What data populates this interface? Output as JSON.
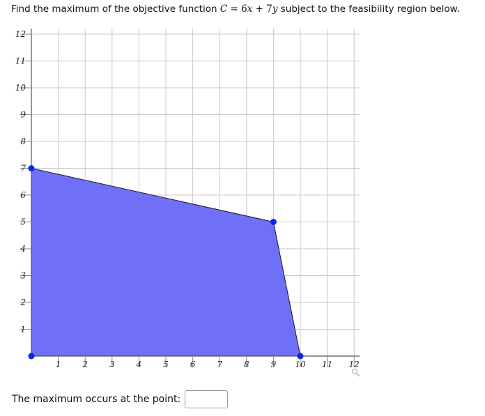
{
  "question": {
    "prefix": "Find the maximum of the objective function ",
    "var_c": "C",
    "eq": " = ",
    "coef_x": "6",
    "var_x": "x",
    "plus": " + ",
    "coef_y": "7",
    "var_y": "y",
    "suffix": " subject to the feasibility region below."
  },
  "chart_data": {
    "type": "area",
    "title": "",
    "xlabel": "",
    "ylabel": "",
    "xlim": [
      0,
      12
    ],
    "ylim": [
      0,
      12
    ],
    "x_ticks": [
      "1",
      "2",
      "3",
      "4",
      "5",
      "6",
      "7",
      "8",
      "9",
      "10",
      "11",
      "12"
    ],
    "y_ticks": [
      "1",
      "2",
      "3",
      "4",
      "5",
      "6",
      "7",
      "8",
      "9",
      "10",
      "11",
      "12"
    ],
    "grid": true,
    "region_color": "#6f6ff7",
    "vertex_color": "#0a24f0",
    "polygon": [
      [
        0,
        0
      ],
      [
        0,
        7
      ],
      [
        9,
        5
      ],
      [
        10,
        0
      ]
    ],
    "vertices": [
      [
        0,
        0
      ],
      [
        0,
        7
      ],
      [
        9,
        5
      ],
      [
        10,
        0
      ]
    ]
  },
  "answer": {
    "label": "The maximum occurs at the point:",
    "value": "",
    "placeholder": ""
  }
}
